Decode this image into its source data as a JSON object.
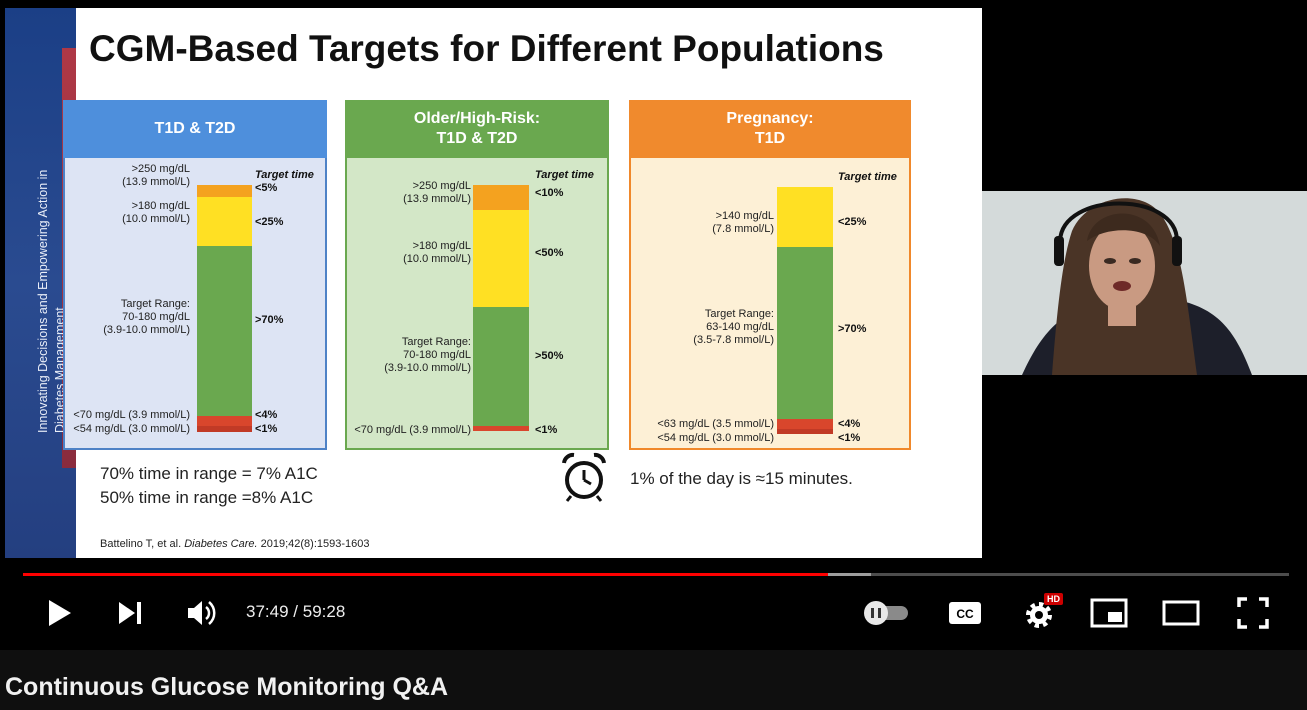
{
  "slide": {
    "title": "CGM-Based Targets for Different Populations",
    "brand_line1": "Innovating Decisions and Empowering Action in",
    "brand_line2": "Diabetes Management",
    "panels": [
      {
        "header": "T1D & T2D",
        "target_time_label": "Target time",
        "labels": [
          ">250 mg/dL\n(13.9 mmol/L)",
          ">180 mg/dL\n(10.0 mmol/L)",
          "Target Range:\n70-180 mg/dL\n(3.9-10.0 mmol/L)",
          "<70 mg/dL (3.9 mmol/L)",
          "<54 mg/dL (3.0 mmol/L)"
        ],
        "percents": [
          "<5%",
          "<25%",
          ">70%",
          "<4%",
          "<1%"
        ]
      },
      {
        "header": "Older/High-Risk:\nT1D & T2D",
        "target_time_label": "Target time",
        "labels": [
          ">250 mg/dL\n(13.9 mmol/L)",
          ">180 mg/dL\n(10.0 mmol/L)",
          "Target Range:\n70-180 mg/dL\n(3.9-10.0 mmol/L)",
          "<70 mg/dL (3.9 mmol/L)"
        ],
        "percents": [
          "<10%",
          "<50%",
          ">50%",
          "<1%"
        ]
      },
      {
        "header": "Pregnancy:\nT1D",
        "target_time_label": "Target time",
        "labels": [
          ">140 mg/dL\n(7.8 mmol/L)",
          "Target Range:\n63-140 mg/dL\n(3.5-7.8 mmol/L)",
          "<63 mg/dL (3.5 mmol/L)",
          "<54 mg/dL (3.0 mmol/L)"
        ],
        "percents": [
          "<25%",
          ">70%",
          "<4%",
          "<1%"
        ]
      }
    ],
    "note_line1": "70% time in range = 7% A1C",
    "note_line2": "50% time in range =8% A1C",
    "note_day": "1% of the day is ≈15 minutes.",
    "citation_authors": "Battelino T, et al.",
    "citation_journal": "Diabetes Care.",
    "citation_ref": "2019;42(8):1593-1603"
  },
  "player": {
    "current_time": "37:49",
    "separator": "/",
    "duration": "59:28",
    "played_fraction": 0.636,
    "buffered_fraction": 0.67,
    "hd_badge": "HD",
    "cc_label": "CC",
    "icons": [
      "play-icon",
      "next-icon",
      "volume-icon",
      "autoplay-toggle-icon",
      "captions-icon",
      "settings-icon",
      "miniplayer-icon",
      "theater-icon",
      "fullscreen-icon"
    ],
    "colors": {
      "progress": "#ff0000",
      "panel1": "#4e8fdc",
      "panel2": "#6aa84f",
      "panel3": "#f08a2d"
    }
  },
  "video_title": "Continuous Glucose Monitoring Q&A"
}
